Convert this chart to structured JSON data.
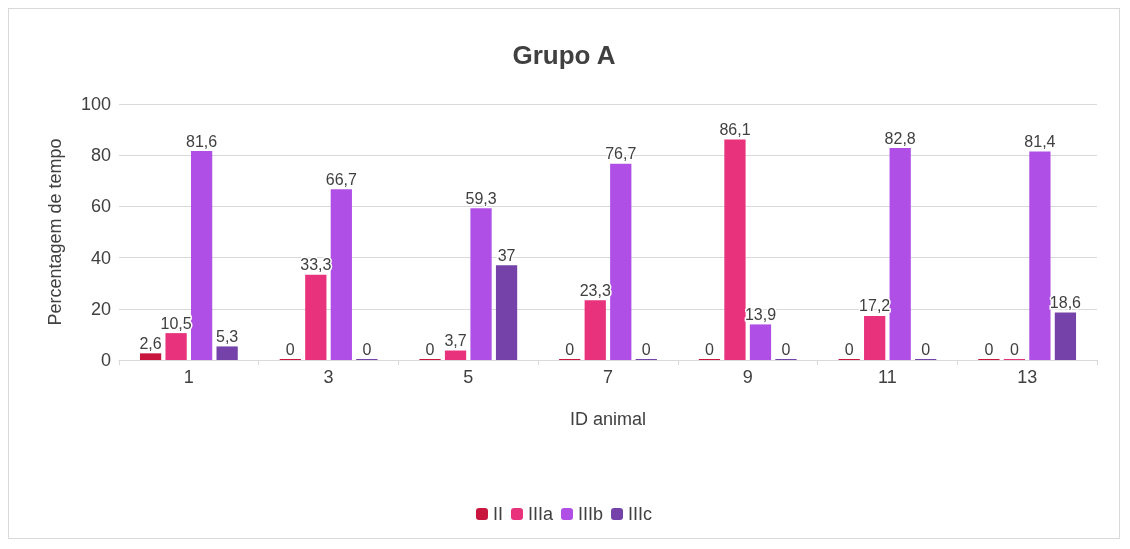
{
  "chart_data": {
    "type": "bar",
    "title": "Grupo A",
    "xlabel": "ID animal",
    "ylabel": "Percentagem de tempo",
    "categories": [
      "1",
      "3",
      "5",
      "7",
      "9",
      "11",
      "13"
    ],
    "series": [
      {
        "name": "II",
        "color": "#c8163f",
        "values": [
          2.6,
          0,
          0,
          0,
          0,
          0,
          0
        ],
        "value_labels": [
          "2,6",
          "0",
          "0",
          "0",
          "0",
          "0",
          "0"
        ]
      },
      {
        "name": "IIIa",
        "color": "#e8327c",
        "values": [
          10.5,
          33.3,
          3.7,
          23.3,
          86.1,
          17.2,
          0
        ],
        "value_labels": [
          "10,5",
          "33,3",
          "3,7",
          "23,3",
          "86,1",
          "17,2",
          "0"
        ]
      },
      {
        "name": "IIIb",
        "color": "#b04fe6",
        "values": [
          81.6,
          66.7,
          59.3,
          76.7,
          13.9,
          82.8,
          81.4
        ],
        "value_labels": [
          "81,6",
          "66,7",
          "59,3",
          "76,7",
          "13,9",
          "82,8",
          "81,4"
        ]
      },
      {
        "name": "IIIc",
        "color": "#7442a8",
        "values": [
          5.3,
          0,
          37,
          0,
          0,
          0,
          18.6
        ],
        "value_labels": [
          "5,3",
          "0",
          "37",
          "0",
          "0",
          "0",
          "18,6"
        ]
      }
    ],
    "ylim": [
      0,
      100
    ],
    "yticks": [
      0,
      20,
      40,
      60,
      80,
      100
    ],
    "grid": "y",
    "legend": "bottom"
  }
}
